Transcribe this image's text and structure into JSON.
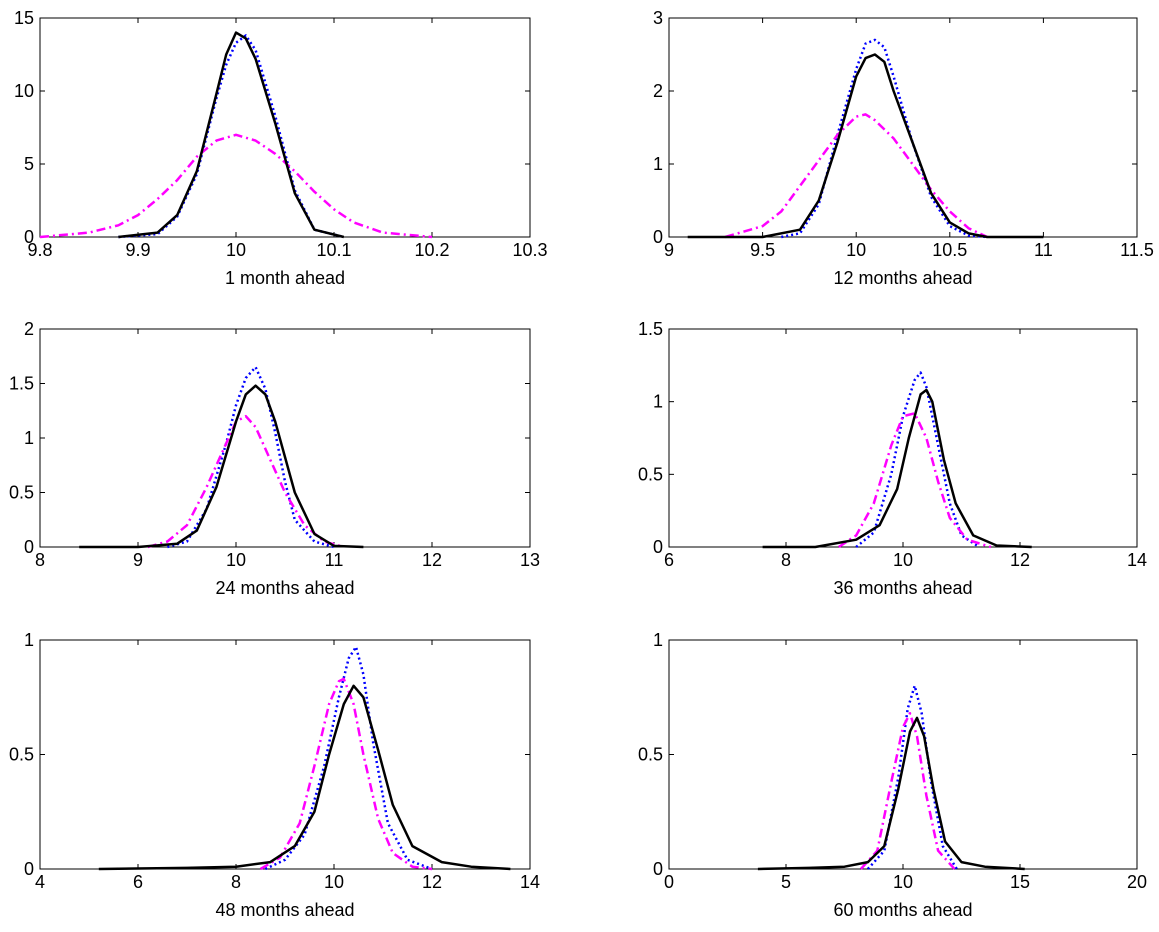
{
  "figure": {
    "background": "#ffffff",
    "series_styles": [
      {
        "key": "dotted",
        "color": "#0000ff",
        "dash": "dotted"
      },
      {
        "key": "dashdot",
        "color": "#ff00ff",
        "dash": "dash-dot"
      },
      {
        "key": "solid",
        "color": "#000000",
        "dash": "solid"
      }
    ]
  },
  "chart_data": [
    {
      "type": "line",
      "xlabel": "1 month ahead",
      "xlim": [
        9.8,
        10.3
      ],
      "ylim": [
        0,
        15
      ],
      "xticks": [
        "9.8",
        "9.9",
        "10",
        "10.1",
        "10.2",
        "10.3"
      ],
      "yticks": [
        "0",
        "5",
        "10",
        "15"
      ],
      "series": [
        {
          "style": "dotted",
          "x": [
            9.88,
            9.92,
            9.94,
            9.96,
            9.98,
            9.99,
            10.0,
            10.01,
            10.02,
            10.04,
            10.06,
            10.08,
            10.11
          ],
          "y": [
            0,
            0.2,
            1.4,
            4.3,
            9.5,
            11.8,
            13.3,
            13.8,
            12.8,
            8.3,
            3.2,
            0.5,
            0
          ]
        },
        {
          "style": "dashdot",
          "x": [
            9.8,
            9.85,
            9.88,
            9.9,
            9.92,
            9.94,
            9.96,
            9.98,
            10.0,
            10.02,
            10.04,
            10.06,
            10.08,
            10.1,
            10.12,
            10.15,
            10.2
          ],
          "y": [
            0,
            0.3,
            0.8,
            1.5,
            2.6,
            3.9,
            5.5,
            6.6,
            7.0,
            6.6,
            5.7,
            4.5,
            3.1,
            1.9,
            1.0,
            0.3,
            0
          ]
        },
        {
          "style": "solid",
          "x": [
            9.88,
            9.92,
            9.94,
            9.96,
            9.98,
            9.99,
            10.0,
            10.01,
            10.02,
            10.04,
            10.06,
            10.08,
            10.11
          ],
          "y": [
            0,
            0.3,
            1.5,
            4.5,
            9.8,
            12.5,
            14.0,
            13.6,
            12.2,
            7.8,
            3.0,
            0.5,
            0
          ]
        }
      ]
    },
    {
      "type": "line",
      "xlabel": "12 months ahead",
      "xlim": [
        9,
        11.5
      ],
      "ylim": [
        0,
        3
      ],
      "xticks": [
        "9",
        "9.5",
        "10",
        "10.5",
        "11",
        "11.5"
      ],
      "yticks": [
        "0",
        "1",
        "2",
        "3"
      ],
      "series": [
        {
          "style": "dotted",
          "x": [
            9.6,
            9.7,
            9.8,
            9.9,
            10.0,
            10.05,
            10.1,
            10.15,
            10.2,
            10.3,
            10.4,
            10.5,
            10.6,
            10.7
          ],
          "y": [
            0,
            0.05,
            0.45,
            1.4,
            2.3,
            2.65,
            2.7,
            2.6,
            2.2,
            1.3,
            0.55,
            0.15,
            0.02,
            0
          ]
        },
        {
          "style": "dashdot",
          "x": [
            9.3,
            9.5,
            9.6,
            9.7,
            9.8,
            9.9,
            10.0,
            10.05,
            10.1,
            10.2,
            10.3,
            10.4,
            10.5,
            10.6,
            10.7
          ],
          "y": [
            0,
            0.15,
            0.35,
            0.7,
            1.05,
            1.4,
            1.65,
            1.68,
            1.6,
            1.35,
            1.0,
            0.65,
            0.35,
            0.12,
            0
          ]
        },
        {
          "style": "solid",
          "x": [
            9.1,
            9.5,
            9.7,
            9.8,
            9.9,
            10.0,
            10.05,
            10.1,
            10.15,
            10.2,
            10.3,
            10.4,
            10.5,
            10.6,
            10.7,
            11.0
          ],
          "y": [
            0,
            0,
            0.1,
            0.5,
            1.3,
            2.2,
            2.45,
            2.5,
            2.4,
            2.0,
            1.3,
            0.6,
            0.2,
            0.05,
            0,
            0
          ]
        }
      ]
    },
    {
      "type": "line",
      "xlabel": "24 months ahead",
      "xlim": [
        8,
        13
      ],
      "ylim": [
        0,
        2
      ],
      "xticks": [
        "8",
        "9",
        "10",
        "11",
        "12",
        "13"
      ],
      "yticks": [
        "0",
        "0.5",
        "1",
        "1.5",
        "2"
      ],
      "series": [
        {
          "style": "dotted",
          "x": [
            9.3,
            9.5,
            9.7,
            9.9,
            10.0,
            10.1,
            10.2,
            10.3,
            10.4,
            10.5,
            10.6,
            10.8,
            11.0
          ],
          "y": [
            0,
            0.05,
            0.35,
            0.95,
            1.3,
            1.55,
            1.65,
            1.45,
            1.05,
            0.6,
            0.25,
            0.05,
            0
          ]
        },
        {
          "style": "dashdot",
          "x": [
            9.1,
            9.3,
            9.5,
            9.7,
            9.9,
            10.0,
            10.1,
            10.2,
            10.3,
            10.5,
            10.7,
            10.9,
            11.1
          ],
          "y": [
            0,
            0.05,
            0.2,
            0.55,
            0.95,
            1.15,
            1.2,
            1.1,
            0.9,
            0.5,
            0.2,
            0.05,
            0
          ]
        },
        {
          "style": "solid",
          "x": [
            8.4,
            9.0,
            9.4,
            9.6,
            9.8,
            10.0,
            10.1,
            10.2,
            10.3,
            10.4,
            10.6,
            10.8,
            11.0,
            11.3
          ],
          "y": [
            0,
            0,
            0.03,
            0.15,
            0.55,
            1.15,
            1.4,
            1.48,
            1.4,
            1.15,
            0.5,
            0.12,
            0.01,
            0
          ]
        }
      ]
    },
    {
      "type": "line",
      "xlabel": "36 months ahead",
      "xlim": [
        6,
        14
      ],
      "ylim": [
        0,
        1.5
      ],
      "xticks": [
        "6",
        "8",
        "10",
        "12",
        "14"
      ],
      "yticks": [
        "0",
        "0.5",
        "1",
        "1.5"
      ],
      "series": [
        {
          "style": "dotted",
          "x": [
            9.2,
            9.5,
            9.8,
            10.0,
            10.2,
            10.3,
            10.4,
            10.6,
            10.8,
            11.0,
            11.3
          ],
          "y": [
            0,
            0.1,
            0.5,
            0.9,
            1.15,
            1.2,
            1.1,
            0.7,
            0.3,
            0.08,
            0
          ]
        },
        {
          "style": "dashdot",
          "x": [
            8.9,
            9.2,
            9.5,
            9.8,
            10.0,
            10.2,
            10.4,
            10.6,
            10.8,
            11.1,
            11.5
          ],
          "y": [
            0,
            0.08,
            0.3,
            0.7,
            0.9,
            0.92,
            0.75,
            0.45,
            0.2,
            0.05,
            0
          ]
        },
        {
          "style": "solid",
          "x": [
            7.6,
            8.5,
            9.2,
            9.6,
            9.9,
            10.1,
            10.3,
            10.4,
            10.5,
            10.7,
            10.9,
            11.2,
            11.6,
            12.2
          ],
          "y": [
            0,
            0,
            0.05,
            0.15,
            0.4,
            0.75,
            1.05,
            1.08,
            1.0,
            0.6,
            0.3,
            0.08,
            0.01,
            0
          ]
        }
      ]
    },
    {
      "type": "line",
      "xlabel": "48 months ahead",
      "xlim": [
        4,
        14
      ],
      "ylim": [
        0,
        1
      ],
      "xticks": [
        "4",
        "6",
        "8",
        "10",
        "12",
        "14"
      ],
      "yticks": [
        "0",
        "0.5",
        "1"
      ],
      "series": [
        {
          "style": "dotted",
          "x": [
            8.6,
            9.0,
            9.4,
            9.8,
            10.1,
            10.3,
            10.45,
            10.6,
            10.8,
            11.1,
            11.5,
            12.0
          ],
          "y": [
            0,
            0.04,
            0.15,
            0.45,
            0.75,
            0.92,
            0.97,
            0.85,
            0.55,
            0.2,
            0.04,
            0
          ]
        },
        {
          "style": "dashdot",
          "x": [
            8.5,
            8.9,
            9.3,
            9.6,
            9.9,
            10.1,
            10.2,
            10.4,
            10.6,
            10.9,
            11.2,
            11.6,
            12.0
          ],
          "y": [
            0,
            0.05,
            0.2,
            0.45,
            0.72,
            0.82,
            0.83,
            0.72,
            0.5,
            0.22,
            0.07,
            0.01,
            0
          ]
        },
        {
          "style": "solid",
          "x": [
            5.2,
            7.0,
            8.0,
            8.7,
            9.2,
            9.6,
            9.9,
            10.2,
            10.4,
            10.6,
            10.9,
            11.2,
            11.6,
            12.2,
            12.8,
            13.6
          ],
          "y": [
            0,
            0.005,
            0.01,
            0.03,
            0.1,
            0.25,
            0.5,
            0.72,
            0.8,
            0.75,
            0.52,
            0.28,
            0.1,
            0.03,
            0.01,
            0
          ]
        }
      ]
    },
    {
      "type": "line",
      "xlabel": "60 months ahead",
      "xlim": [
        0,
        20
      ],
      "ylim": [
        0,
        1
      ],
      "xticks": [
        "0",
        "5",
        "10",
        "15",
        "20"
      ],
      "yticks": [
        "0",
        "0.5",
        "1"
      ],
      "series": [
        {
          "style": "dotted",
          "x": [
            8.5,
            9.2,
            9.8,
            10.2,
            10.5,
            10.8,
            11.2,
            11.7,
            12.3
          ],
          "y": [
            0,
            0.08,
            0.4,
            0.7,
            0.8,
            0.68,
            0.38,
            0.1,
            0
          ]
        },
        {
          "style": "dashdot",
          "x": [
            8.2,
            8.9,
            9.5,
            10.0,
            10.3,
            10.6,
            11.0,
            11.5,
            12.2
          ],
          "y": [
            0,
            0.08,
            0.38,
            0.62,
            0.68,
            0.58,
            0.32,
            0.08,
            0
          ]
        },
        {
          "style": "solid",
          "x": [
            3.8,
            6.0,
            7.5,
            8.5,
            9.2,
            9.8,
            10.3,
            10.6,
            10.9,
            11.3,
            11.8,
            12.5,
            13.5,
            15.2
          ],
          "y": [
            0,
            0.005,
            0.01,
            0.03,
            0.1,
            0.35,
            0.6,
            0.66,
            0.58,
            0.35,
            0.12,
            0.03,
            0.01,
            0
          ]
        }
      ]
    }
  ]
}
